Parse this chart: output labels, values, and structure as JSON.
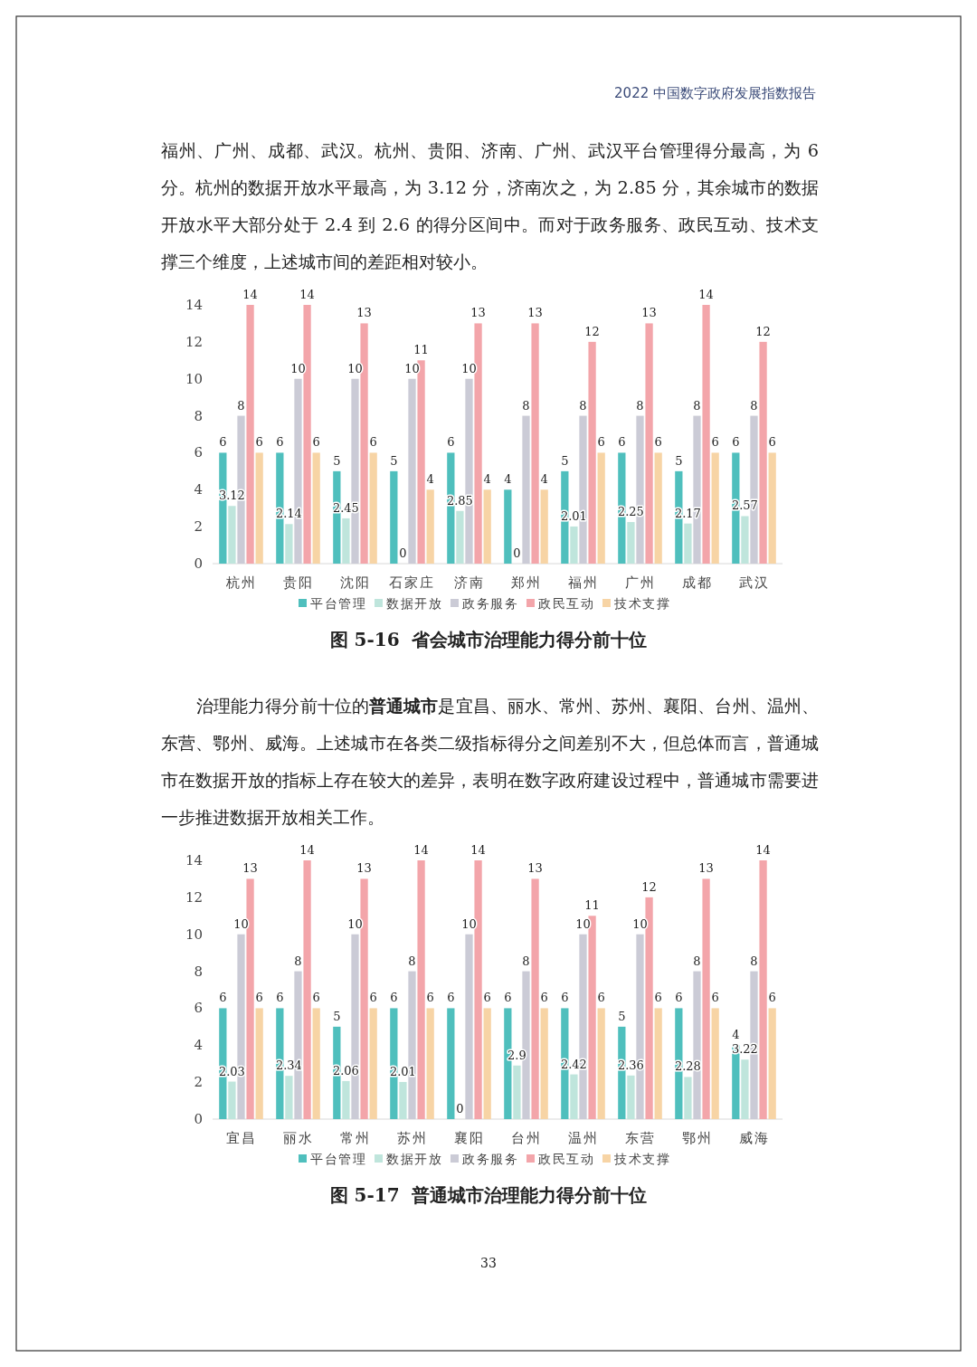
{
  "chart_data": [
    {
      "type": "bar",
      "title": "图 5-16  省会城市治理能力得分前十位",
      "categories": [
        "杭州",
        "贵阳",
        "沈阳",
        "石家庄",
        "济南",
        "郑州",
        "福州",
        "广州",
        "成都",
        "武汉"
      ],
      "series": [
        {
          "name": "平台管理",
          "color": "#4fbfbd",
          "values": [
            6,
            6,
            5,
            5,
            6,
            4,
            5,
            6,
            5,
            6
          ]
        },
        {
          "name": "数据开放",
          "color": "#bfe5dc",
          "values": [
            3.12,
            2.14,
            2.45,
            0,
            2.85,
            0,
            2.01,
            2.25,
            2.17,
            2.57
          ]
        },
        {
          "name": "政务服务",
          "color": "#cbcbd6",
          "values": [
            8,
            10,
            10,
            10,
            10,
            8,
            8,
            8,
            8,
            8
          ]
        },
        {
          "name": "政民互动",
          "color": "#f3a5aa",
          "values": [
            14,
            14,
            13,
            11,
            13,
            13,
            12,
            13,
            14,
            12
          ]
        },
        {
          "name": "技术支撑",
          "color": "#f7d4a5",
          "values": [
            6,
            6,
            6,
            4,
            4,
            4,
            6,
            6,
            6,
            6
          ]
        }
      ],
      "ylim": [
        0,
        14
      ],
      "yticks": [
        0,
        2,
        4,
        6,
        8,
        10,
        12,
        14
      ],
      "data_labels": true,
      "legend": "bottom",
      "annotations": [
        "2022 中国数字政府发展指数报告",
        "福州、广州、成都、武汉。杭州、贵阳、济南、广州、武汉平台管理得分最高，为 6 分。杭州的数据开放水平最高，为 3.12 分，济南次之，为 2.85 分，其余城市的数据开放水平大部分处于 2.4 到 2.6 的得分区间中。而对于政务服务、政民互动、技术支撑三个维度，上述城市间的差距相对较小。"
      ]
    },
    {
      "type": "bar",
      "title": "图 5-17  普通城市治理能力得分前十位",
      "categories": [
        "宜昌",
        "丽水",
        "常州",
        "苏州",
        "襄阳",
        "台州",
        "温州",
        "东营",
        "鄂州",
        "威海"
      ],
      "series": [
        {
          "name": "平台管理",
          "color": "#4fbfbd",
          "values": [
            6,
            6,
            5,
            6,
            6,
            6,
            6,
            5,
            6,
            4
          ]
        },
        {
          "name": "数据开放",
          "color": "#bfe5dc",
          "values": [
            2.03,
            2.34,
            2.06,
            2.01,
            0,
            2.9,
            2.42,
            2.36,
            2.28,
            3.22
          ]
        },
        {
          "name": "政务服务",
          "color": "#cbcbd6",
          "values": [
            10,
            8,
            10,
            8,
            10,
            8,
            10,
            10,
            8,
            8
          ]
        },
        {
          "name": "政民互动",
          "color": "#f3a5aa",
          "values": [
            13,
            14,
            13,
            14,
            14,
            13,
            11,
            12,
            13,
            14
          ]
        },
        {
          "name": "技术支撑",
          "color": "#f7d4a5",
          "values": [
            6,
            6,
            6,
            6,
            6,
            6,
            6,
            6,
            6,
            6
          ]
        }
      ],
      "ylim": [
        0,
        14
      ],
      "yticks": [
        0,
        2,
        4,
        6,
        8,
        10,
        12,
        14
      ],
      "data_labels": true,
      "legend": "bottom",
      "annotations": [
        "治理能力得分前十位的**普通城市**是宜昌、丽水、常州、苏州、襄阳、台州、温州、东营、鄂州、威海。上述城市在各类二级指标得分之间差别不大，但总体而言，普通城市在数据开放的指标上存在较大的差异，表明在数字政府建设过程中，普通城市需要进一步推进数据开放相关工作。",
        "33"
      ]
    }
  ]
}
